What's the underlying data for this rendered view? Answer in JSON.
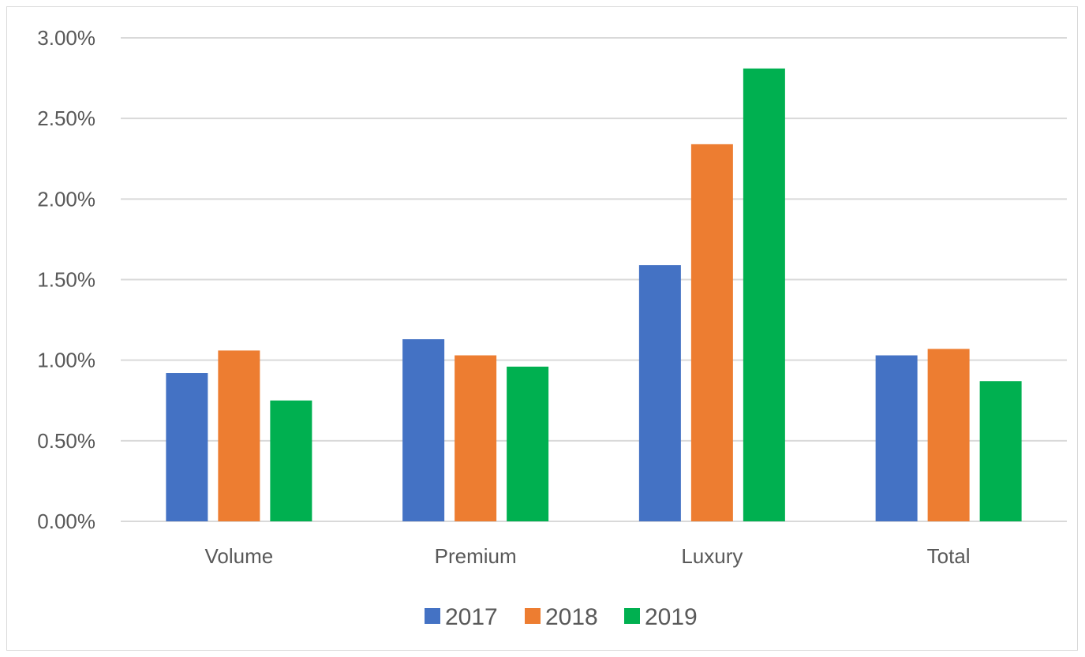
{
  "chart_data": {
    "type": "bar",
    "categories": [
      "Volume",
      "Premium",
      "Luxury",
      "Total"
    ],
    "series": [
      {
        "name": "2017",
        "color": "#4472c4",
        "values": [
          0.92,
          1.13,
          1.59,
          1.03
        ]
      },
      {
        "name": "2018",
        "color": "#ed7d31",
        "values": [
          1.06,
          1.03,
          2.34,
          1.07
        ]
      },
      {
        "name": "2019",
        "color": "#00b050",
        "values": [
          0.75,
          0.96,
          2.81,
          0.87
        ]
      }
    ],
    "ylim": [
      0,
      3
    ],
    "yticks": [
      "0.00%",
      "0.50%",
      "1.00%",
      "1.50%",
      "2.00%",
      "2.50%",
      "3.00%"
    ],
    "ytick_values": [
      0,
      0.5,
      1,
      1.5,
      2,
      2.5,
      3
    ],
    "title": "",
    "xlabel": "",
    "ylabel": "",
    "grid": true,
    "legend_position": "bottom"
  }
}
